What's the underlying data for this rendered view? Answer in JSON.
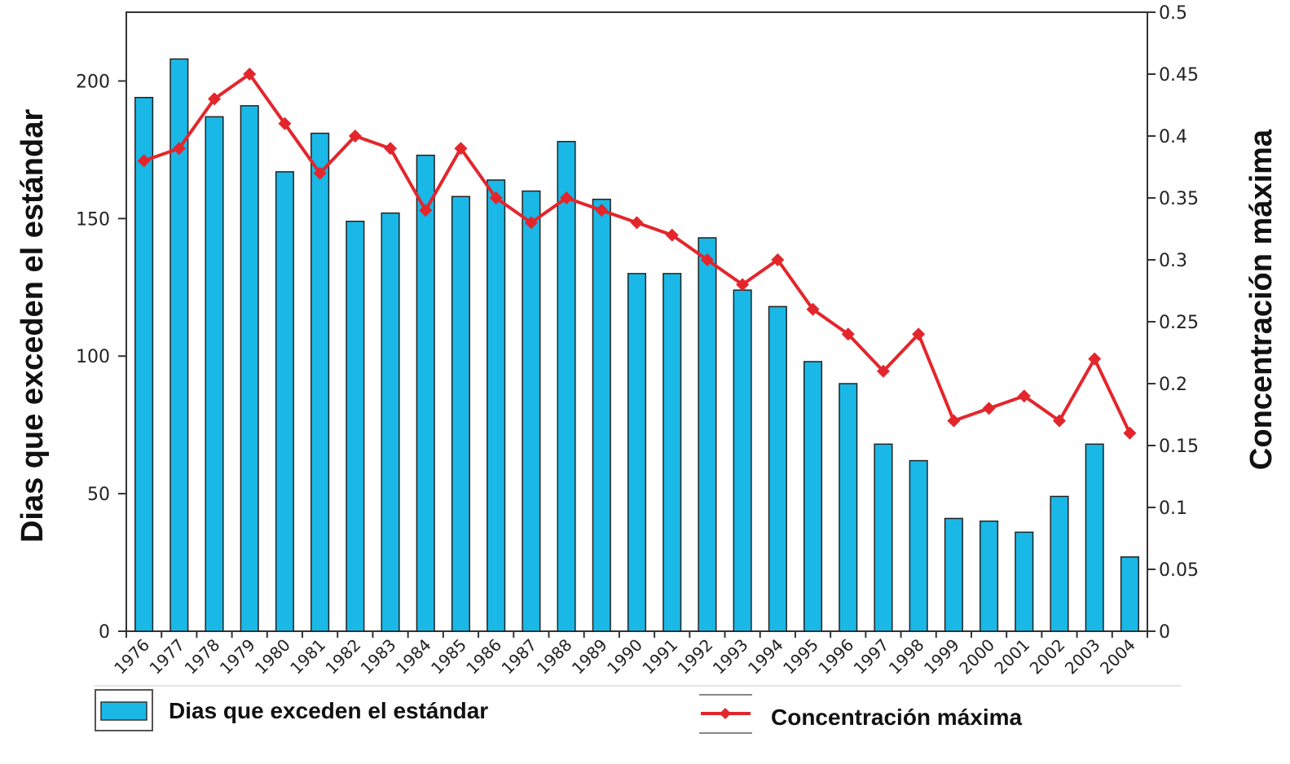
{
  "chart_data": {
    "type": "bar+line",
    "categories": [
      "1976",
      "1977",
      "1978",
      "1979",
      "1980",
      "1981",
      "1982",
      "1983",
      "1984",
      "1985",
      "1986",
      "1987",
      "1988",
      "1989",
      "1990",
      "1991",
      "1992",
      "1993",
      "1994",
      "1995",
      "1996",
      "1997",
      "1998",
      "1999",
      "2000",
      "2001",
      "2002",
      "2003",
      "2004"
    ],
    "series": [
      {
        "name": "Dias que exceden el estándar",
        "type": "bar",
        "axis": "left",
        "color": "#1ab8e6",
        "values": [
          194,
          208,
          187,
          191,
          167,
          181,
          149,
          152,
          173,
          158,
          164,
          160,
          178,
          157,
          130,
          130,
          143,
          124,
          118,
          98,
          90,
          68,
          62,
          41,
          40,
          36,
          49,
          68,
          27
        ]
      },
      {
        "name": "Concentración máxima",
        "type": "line",
        "axis": "right",
        "color": "#e3262c",
        "values": [
          0.38,
          0.39,
          0.43,
          0.45,
          0.41,
          0.37,
          0.4,
          0.39,
          0.34,
          0.39,
          0.35,
          0.33,
          0.35,
          0.34,
          0.33,
          0.32,
          0.3,
          0.28,
          0.3,
          0.26,
          0.24,
          0.21,
          0.24,
          0.17,
          0.18,
          0.19,
          0.17,
          0.22,
          0.16
        ]
      }
    ],
    "ylabel_left": "Dias que exceden el estándar",
    "ylabel_right": "Concentración máxima",
    "ylim_left": [
      0,
      225
    ],
    "ylim_right": [
      0,
      0.5
    ],
    "yticks_left": [
      "0",
      "50",
      "100",
      "150",
      "200"
    ],
    "yticks_right": [
      "0",
      "0.05",
      "0.1",
      "0.15",
      "0.2",
      "0.25",
      "0.3",
      "0.35",
      "0.4",
      "0.45",
      "0.5"
    ],
    "grid": false,
    "legend_position": "bottom",
    "legend": [
      "Dias que exceden el estándar",
      "Concentración máxima"
    ]
  }
}
